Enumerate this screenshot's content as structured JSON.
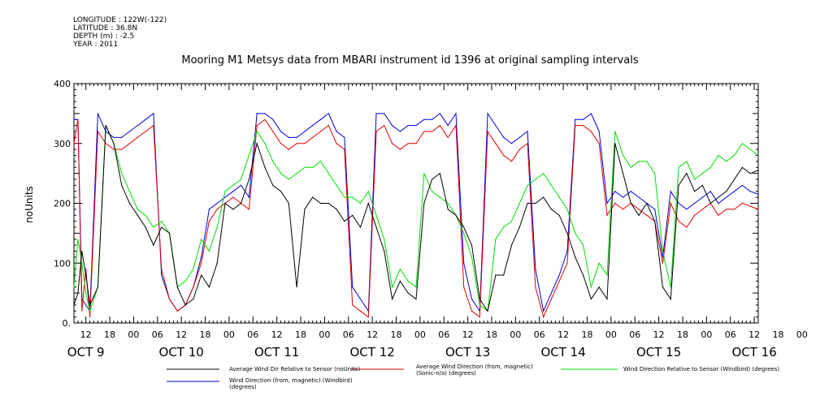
{
  "header": {
    "longitude": "LONGITUDE : 122W(-122)",
    "latitude": "LATITUDE : 36.8N",
    "depth": "DEPTH (m) : -2.5",
    "year": "YEAR : 2011"
  },
  "chart_data": {
    "type": "line",
    "title": "Mooring M1 Metsys data from MBARI instrument id 1396 at original sampling intervals",
    "ylabel": "noUnits",
    "ylim": [
      0,
      400
    ],
    "yticks": [
      0,
      100,
      200,
      300,
      400
    ],
    "ytick_labels": [
      "0.",
      "100",
      "200",
      "300",
      "400"
    ],
    "xlim_hours": [
      9,
      181
    ],
    "hour_ticks": [
      "12",
      "18",
      "00",
      "06",
      "12",
      "18",
      "00",
      "06",
      "12",
      "18",
      "00",
      "06",
      "12",
      "18",
      "00",
      "06",
      "12",
      "18",
      "00",
      "06",
      "12",
      "18",
      "00",
      "06",
      "12",
      "18",
      "00",
      "06",
      "12",
      "18",
      "00"
    ],
    "day_labels": [
      "OCT  9",
      "OCT 10",
      "OCT 11",
      "OCT 12",
      "OCT 13",
      "OCT 14",
      "OCT 15",
      "OCT 16"
    ],
    "x_units": "hours since OCT 9 00:00",
    "grid": false,
    "legend_position": "bottom",
    "series": [
      {
        "name": "Average Wind Dir Relative to Sensor (noUnits)",
        "color": "#000000",
        "x": [
          9,
          10,
          11,
          12,
          13,
          15,
          17,
          19,
          21,
          23,
          25,
          27,
          29,
          31,
          33,
          35,
          37,
          39,
          41,
          43,
          45,
          47,
          49,
          51,
          53,
          55,
          57,
          59,
          61,
          63,
          65,
          67,
          69,
          71,
          73,
          75,
          77,
          79,
          81,
          83,
          85,
          87,
          89,
          91,
          93,
          95,
          97,
          99,
          101,
          103,
          105,
          107,
          109,
          111,
          113,
          115,
          117,
          119,
          121,
          123,
          125,
          127,
          129,
          131,
          133,
          135,
          137,
          139,
          141,
          143,
          145,
          147,
          149,
          151,
          153,
          155,
          157,
          159,
          161,
          163,
          165,
          167,
          169,
          171,
          173,
          175,
          177,
          179,
          181
        ],
        "y": [
          30,
          50,
          120,
          80,
          30,
          60,
          330,
          300,
          230,
          200,
          180,
          160,
          130,
          160,
          150,
          60,
          30,
          40,
          80,
          60,
          100,
          200,
          190,
          200,
          240,
          300,
          260,
          230,
          220,
          200,
          60,
          190,
          210,
          200,
          200,
          190,
          170,
          180,
          160,
          200,
          160,
          120,
          40,
          70,
          50,
          40,
          200,
          240,
          250,
          190,
          180,
          160,
          130,
          40,
          20,
          80,
          80,
          130,
          160,
          200,
          200,
          210,
          190,
          180,
          150,
          110,
          80,
          40,
          60,
          40,
          300,
          250,
          200,
          180,
          200,
          170,
          60,
          40,
          230,
          250,
          220,
          230,
          200,
          210,
          220,
          240,
          260,
          250,
          255
        ]
      },
      {
        "name": "Average Wind Direction (from, magnetic) (Sonic-n/a) (degrees)",
        "color": "#e00000",
        "x": [
          9,
          10,
          11,
          12,
          13,
          15,
          17,
          19,
          21,
          23,
          25,
          27,
          29,
          31,
          33,
          35,
          37,
          39,
          41,
          43,
          45,
          47,
          49,
          51,
          53,
          55,
          57,
          59,
          61,
          63,
          65,
          67,
          69,
          71,
          73,
          75,
          77,
          79,
          81,
          83,
          85,
          87,
          89,
          91,
          93,
          95,
          97,
          99,
          101,
          103,
          105,
          107,
          109,
          111,
          113,
          115,
          117,
          119,
          121,
          123,
          125,
          127,
          129,
          131,
          133,
          135,
          137,
          139,
          141,
          143,
          145,
          147,
          149,
          151,
          153,
          155,
          157,
          159,
          161,
          163,
          165,
          167,
          169,
          171,
          173,
          175,
          177,
          179,
          181
        ],
        "y": [
          300,
          340,
          20,
          90,
          10,
          320,
          300,
          290,
          290,
          300,
          310,
          320,
          330,
          90,
          40,
          20,
          30,
          60,
          100,
          170,
          190,
          200,
          210,
          200,
          190,
          330,
          340,
          320,
          300,
          290,
          300,
          300,
          310,
          320,
          330,
          300,
          290,
          30,
          20,
          10,
          320,
          330,
          300,
          290,
          300,
          300,
          320,
          320,
          330,
          310,
          330,
          60,
          20,
          10,
          320,
          300,
          280,
          270,
          290,
          300,
          60,
          10,
          40,
          70,
          100,
          330,
          330,
          320,
          300,
          180,
          200,
          190,
          200,
          190,
          180,
          170,
          100,
          200,
          170,
          160,
          180,
          190,
          200,
          180,
          190,
          190,
          200,
          195,
          190
        ]
      },
      {
        "name": "Wind Direction Relative to Sensor (Windbird) (degrees)",
        "color": "#00dd00",
        "x": [
          9,
          10,
          11,
          12,
          13,
          15,
          17,
          19,
          21,
          23,
          25,
          27,
          29,
          31,
          33,
          35,
          37,
          39,
          41,
          43,
          45,
          47,
          49,
          51,
          53,
          55,
          57,
          59,
          61,
          63,
          65,
          67,
          69,
          71,
          73,
          75,
          77,
          79,
          81,
          83,
          85,
          87,
          89,
          91,
          93,
          95,
          97,
          99,
          101,
          103,
          105,
          107,
          109,
          111,
          113,
          115,
          117,
          119,
          121,
          123,
          125,
          127,
          129,
          131,
          133,
          135,
          137,
          139,
          141,
          143,
          145,
          147,
          149,
          151,
          153,
          155,
          157,
          159,
          161,
          163,
          165,
          167,
          169,
          171,
          173,
          175,
          177,
          179,
          181
        ],
        "y": [
          60,
          140,
          100,
          50,
          20,
          60,
          330,
          300,
          250,
          220,
          190,
          180,
          160,
          170,
          150,
          60,
          70,
          90,
          140,
          120,
          160,
          220,
          230,
          240,
          280,
          320,
          300,
          270,
          250,
          240,
          250,
          260,
          260,
          270,
          250,
          230,
          210,
          210,
          200,
          220,
          180,
          140,
          60,
          90,
          70,
          60,
          250,
          220,
          210,
          200,
          180,
          150,
          110,
          30,
          20,
          140,
          160,
          170,
          200,
          230,
          240,
          250,
          230,
          210,
          190,
          150,
          130,
          60,
          100,
          80,
          320,
          280,
          260,
          270,
          270,
          250,
          120,
          60,
          260,
          270,
          240,
          250,
          260,
          280,
          270,
          280,
          300,
          290,
          280
        ]
      },
      {
        "name": "Wind Direction (from, magnetic) (Windbird) (degrees)",
        "color": "#0000dd",
        "x": [
          9,
          10,
          11,
          12,
          13,
          15,
          17,
          19,
          21,
          23,
          25,
          27,
          29,
          31,
          33,
          35,
          37,
          39,
          41,
          43,
          45,
          47,
          49,
          51,
          53,
          55,
          57,
          59,
          61,
          63,
          65,
          67,
          69,
          71,
          73,
          75,
          77,
          79,
          81,
          83,
          85,
          87,
          89,
          91,
          93,
          95,
          97,
          99,
          101,
          103,
          105,
          107,
          109,
          111,
          113,
          115,
          117,
          119,
          121,
          123,
          125,
          127,
          129,
          131,
          133,
          135,
          137,
          139,
          141,
          143,
          145,
          147,
          149,
          151,
          153,
          155,
          157,
          159,
          161,
          163,
          165,
          167,
          169,
          171,
          173,
          175,
          177,
          179,
          181
        ],
        "y": [
          340,
          340,
          40,
          30,
          20,
          350,
          320,
          310,
          310,
          320,
          330,
          340,
          350,
          80,
          40,
          20,
          30,
          60,
          110,
          190,
          200,
          210,
          220,
          230,
          210,
          350,
          350,
          340,
          320,
          310,
          310,
          320,
          330,
          340,
          350,
          320,
          310,
          60,
          40,
          20,
          350,
          350,
          330,
          320,
          330,
          330,
          340,
          340,
          350,
          330,
          350,
          100,
          40,
          20,
          350,
          330,
          310,
          300,
          310,
          320,
          90,
          20,
          50,
          80,
          120,
          340,
          340,
          350,
          320,
          200,
          220,
          210,
          220,
          210,
          200,
          190,
          110,
          220,
          200,
          190,
          200,
          210,
          220,
          200,
          210,
          220,
          230,
          220,
          215
        ]
      }
    ]
  }
}
